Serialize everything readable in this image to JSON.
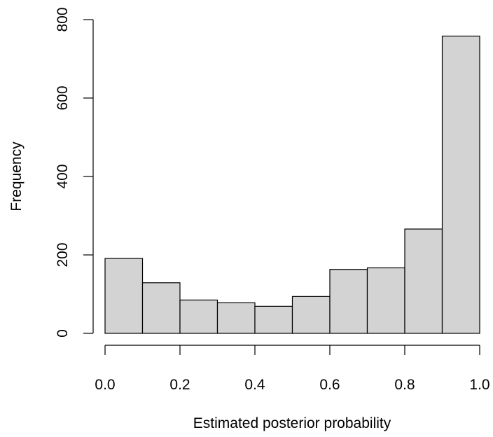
{
  "chart_data": {
    "type": "bar",
    "title": "",
    "xlabel": "Estimated posterior probability",
    "ylabel": "Frequency",
    "bins": [
      {
        "from": 0.0,
        "to": 0.1
      },
      {
        "from": 0.1,
        "to": 0.2
      },
      {
        "from": 0.2,
        "to": 0.3
      },
      {
        "from": 0.3,
        "to": 0.4
      },
      {
        "from": 0.4,
        "to": 0.5
      },
      {
        "from": 0.5,
        "to": 0.6
      },
      {
        "from": 0.6,
        "to": 0.7
      },
      {
        "from": 0.7,
        "to": 0.8
      },
      {
        "from": 0.8,
        "to": 0.9
      },
      {
        "from": 0.9,
        "to": 1.0
      }
    ],
    "values": [
      191,
      129,
      85,
      78,
      69,
      94,
      163,
      167,
      266,
      758
    ],
    "xlim": [
      0,
      1
    ],
    "ylim": [
      0,
      800
    ],
    "x_ticks": [
      0.0,
      0.2,
      0.4,
      0.6,
      0.8,
      1.0
    ],
    "x_tick_labels": [
      "0.0",
      "0.2",
      "0.4",
      "0.6",
      "0.8",
      "1.0"
    ],
    "y_ticks": [
      0,
      200,
      400,
      600,
      800
    ],
    "y_tick_labels": [
      "0",
      "200",
      "400",
      "600",
      "800"
    ],
    "grid": false,
    "legend": "none",
    "bar_fill": "#d3d3d3",
    "bar_stroke": "#000000"
  }
}
